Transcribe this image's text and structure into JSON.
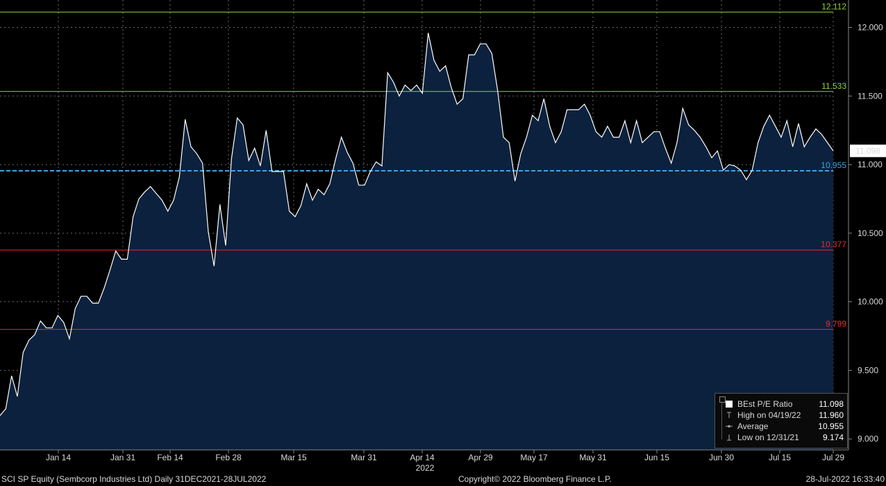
{
  "chart_data": {
    "type": "area",
    "x_labels": [
      "Jan 14",
      "Jan 31",
      "Feb 14",
      "Feb 28",
      "Mar 15",
      "Mar 31",
      "Apr 14",
      "Apr 29",
      "May 17",
      "May 31",
      "Jun 15",
      "Jun 30",
      "Jul 15",
      "Jul 29"
    ],
    "year_label": "2022",
    "y_ticks": [
      "9.000",
      "9.500",
      "10.000",
      "10.500",
      "11.000",
      "11.500",
      "12.000"
    ],
    "ylim": [
      8.92,
      12.2
    ],
    "series": [
      {
        "name": "BEst P/E Ratio",
        "values": [
          9.17,
          9.22,
          9.46,
          9.31,
          9.63,
          9.72,
          9.76,
          9.86,
          9.81,
          9.81,
          9.9,
          9.85,
          9.73,
          9.95,
          10.04,
          10.04,
          9.99,
          9.99,
          10.1,
          10.23,
          10.37,
          10.31,
          10.31,
          10.62,
          10.75,
          10.8,
          10.84,
          10.79,
          10.74,
          10.66,
          10.74,
          10.91,
          11.33,
          11.13,
          11.08,
          11.01,
          10.51,
          10.26,
          10.71,
          10.41,
          11.04,
          11.34,
          11.29,
          11.03,
          11.12,
          10.99,
          11.25,
          10.95,
          10.95,
          10.95,
          10.66,
          10.62,
          10.7,
          10.86,
          10.74,
          10.82,
          10.78,
          10.86,
          11.04,
          11.2,
          11.09,
          11.01,
          10.85,
          10.85,
          10.95,
          11.02,
          10.99,
          11.67,
          11.6,
          11.5,
          11.58,
          11.54,
          11.58,
          11.52,
          11.96,
          11.76,
          11.68,
          11.72,
          11.56,
          11.44,
          11.48,
          11.8,
          11.8,
          11.88,
          11.88,
          11.81,
          11.54,
          11.2,
          11.16,
          10.88,
          11.08,
          11.2,
          11.36,
          11.32,
          11.48,
          11.28,
          11.16,
          11.24,
          11.4,
          11.4,
          11.4,
          11.44,
          11.36,
          11.24,
          11.2,
          11.28,
          11.2,
          11.2,
          11.32,
          11.16,
          11.32,
          11.16,
          11.2,
          11.24,
          11.24,
          11.12,
          11.01,
          11.16,
          11.41,
          11.29,
          11.25,
          11.2,
          11.13,
          11.05,
          11.1,
          10.96,
          11,
          10.99,
          10.96,
          10.89,
          10.96,
          11.16,
          11.28,
          11.36,
          11.28,
          11.2,
          11.32,
          11.13,
          11.3,
          11.13,
          11.2,
          11.26,
          11.22,
          11.16,
          11.1
        ]
      }
    ],
    "levels": [
      {
        "label": "12.112",
        "value": 12.112,
        "color": "#8fd43c",
        "style": "solid"
      },
      {
        "label": "11.533",
        "value": 11.533,
        "color": "#8fd43c",
        "style": "solid"
      },
      {
        "label": "10.955",
        "value": 10.955,
        "color": "#3aa7e8",
        "style": "dashed"
      },
      {
        "label": "10.377",
        "value": 10.377,
        "color": "#e62e2e",
        "style": "solid"
      },
      {
        "label": "9.799",
        "value": 9.799,
        "color": "#e62e2e",
        "style": "solid"
      }
    ],
    "last_value_label": "11.098",
    "grid": true,
    "legend_position": "bottom-right"
  },
  "legend": {
    "rows": [
      {
        "label": "BEst P/E Ratio",
        "value": "11.098"
      },
      {
        "label": "High on 04/19/22",
        "value": "11.960"
      },
      {
        "label": "Average",
        "value": "10.955"
      },
      {
        "label": "Low on 12/31/21",
        "value": "9.174"
      }
    ]
  },
  "footer": {
    "left": "SCI SP Equity (Sembcorp Industries Ltd)  Daily 31DEC2021-28JUL2022",
    "center": "Copyright© 2022 Bloomberg Finance L.P.",
    "right": "28-Jul-2022 16:33:40"
  },
  "colors": {
    "background": "#000000",
    "area_fill": "#0c213d",
    "line": "#ffffff",
    "grid": "#6a6a6a"
  }
}
